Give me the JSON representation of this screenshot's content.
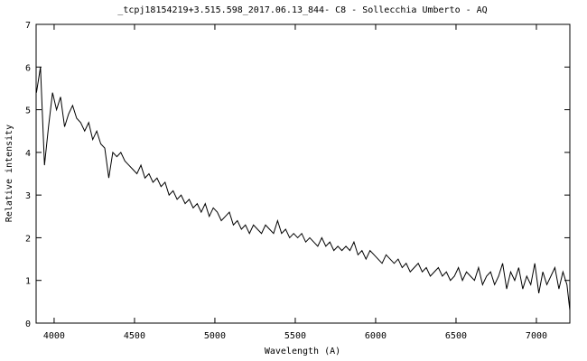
{
  "chart_data": {
    "type": "line",
    "title": "_tcpj18154219+3.515.598_2017.06.13_844- C8 - Sollecchia Umberto - AQ",
    "x_label": "Wavelength (A)",
    "y_label": "Relative intensity",
    "xlim": [
      3888,
      7208
    ],
    "ylim": [
      0,
      7
    ],
    "xticks": [
      4000,
      4500,
      5000,
      5500,
      6000,
      6500,
      7000
    ],
    "yticks": [
      0,
      1,
      2,
      3,
      4,
      5,
      6,
      7
    ],
    "grid": false,
    "series": [
      {
        "color": "#000000",
        "x": [
          3890,
          3915,
          3940,
          3965,
          3990,
          4015,
          4040,
          4065,
          4090,
          4115,
          4140,
          4165,
          4190,
          4215,
          4240,
          4265,
          4290,
          4315,
          4340,
          4365,
          4390,
          4415,
          4440,
          4465,
          4490,
          4515,
          4540,
          4565,
          4590,
          4615,
          4640,
          4665,
          4690,
          4715,
          4740,
          4765,
          4790,
          4815,
          4840,
          4865,
          4890,
          4915,
          4940,
          4965,
          4990,
          5015,
          5040,
          5065,
          5090,
          5115,
          5140,
          5165,
          5190,
          5215,
          5240,
          5265,
          5290,
          5315,
          5340,
          5365,
          5390,
          5415,
          5440,
          5465,
          5490,
          5515,
          5540,
          5565,
          5590,
          5615,
          5640,
          5665,
          5690,
          5715,
          5740,
          5765,
          5790,
          5815,
          5840,
          5865,
          5890,
          5915,
          5940,
          5965,
          5990,
          6015,
          6040,
          6065,
          6090,
          6115,
          6140,
          6165,
          6190,
          6215,
          6240,
          6265,
          6290,
          6315,
          6340,
          6365,
          6390,
          6415,
          6440,
          6465,
          6490,
          6515,
          6540,
          6565,
          6590,
          6615,
          6640,
          6665,
          6690,
          6715,
          6740,
          6765,
          6790,
          6815,
          6840,
          6865,
          6890,
          6915,
          6940,
          6965,
          6990,
          7015,
          7040,
          7065,
          7090,
          7115,
          7140,
          7165,
          7190,
          7208
        ],
        "values": [
          5.4,
          6.0,
          3.7,
          4.6,
          5.4,
          5.0,
          5.3,
          4.6,
          4.9,
          5.1,
          4.8,
          4.7,
          4.5,
          4.7,
          4.3,
          4.5,
          4.2,
          4.1,
          3.4,
          4.0,
          3.9,
          4.0,
          3.8,
          3.7,
          3.6,
          3.5,
          3.7,
          3.4,
          3.5,
          3.3,
          3.4,
          3.2,
          3.3,
          3.0,
          3.1,
          2.9,
          3.0,
          2.8,
          2.9,
          2.7,
          2.8,
          2.6,
          2.8,
          2.5,
          2.7,
          2.6,
          2.4,
          2.5,
          2.6,
          2.3,
          2.4,
          2.2,
          2.3,
          2.1,
          2.3,
          2.2,
          2.1,
          2.3,
          2.2,
          2.1,
          2.4,
          2.1,
          2.2,
          2.0,
          2.1,
          2.0,
          2.1,
          1.9,
          2.0,
          1.9,
          1.8,
          2.0,
          1.8,
          1.9,
          1.7,
          1.8,
          1.7,
          1.8,
          1.7,
          1.9,
          1.6,
          1.7,
          1.5,
          1.7,
          1.6,
          1.5,
          1.4,
          1.6,
          1.5,
          1.4,
          1.5,
          1.3,
          1.4,
          1.2,
          1.3,
          1.4,
          1.2,
          1.3,
          1.1,
          1.2,
          1.3,
          1.1,
          1.2,
          1.0,
          1.1,
          1.3,
          1.0,
          1.2,
          1.1,
          1.0,
          1.3,
          0.9,
          1.1,
          1.2,
          0.9,
          1.1,
          1.4,
          0.8,
          1.2,
          1.0,
          1.3,
          0.8,
          1.1,
          0.9,
          1.4,
          0.7,
          1.2,
          0.9,
          1.1,
          1.3,
          0.8,
          1.2,
          0.9,
          0.3
        ]
      }
    ]
  }
}
